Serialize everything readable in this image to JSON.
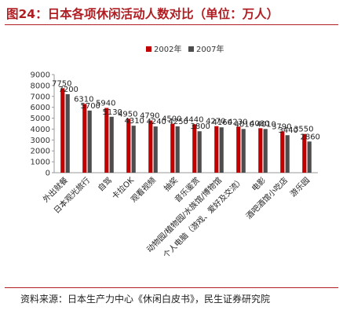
{
  "title": "图24：日本各项休闲活动人数对比（单位：万人）",
  "source": "资料来源：日本生产力中心《休闲白皮书》，民生证券研究院",
  "chart_data": {
    "type": "bar",
    "categories": [
      "外出就餐",
      "日本观光旅行",
      "自驾",
      "卡拉OK",
      "观看视频",
      "抽奖",
      "音乐鉴赏",
      "动物园/植物园/水族馆/博物馆",
      "个人电脑（游戏、爱好及交流）",
      "电影",
      "酒吧酒馆小吃店",
      "游乐园"
    ],
    "series": [
      {
        "name": "2002年",
        "color": "#c00000",
        "values": [
          7750,
          6310,
          5940,
          4950,
          4790,
          4500,
          4440,
          4270,
          4230,
          4080,
          3790,
          3550
        ]
      },
      {
        "name": "2007年",
        "color": "#4d4d4d",
        "values": [
          7200,
          5700,
          5130,
          4310,
          4240,
          4250,
          3800,
          4160,
          4010,
          4010,
          3440,
          2860
        ]
      }
    ],
    "ylim": [
      0,
      9000
    ],
    "yticks": [
      0,
      1000,
      2000,
      3000,
      4000,
      5000,
      6000,
      7000,
      8000,
      9000
    ],
    "legend": "top-right",
    "grid": false
  }
}
